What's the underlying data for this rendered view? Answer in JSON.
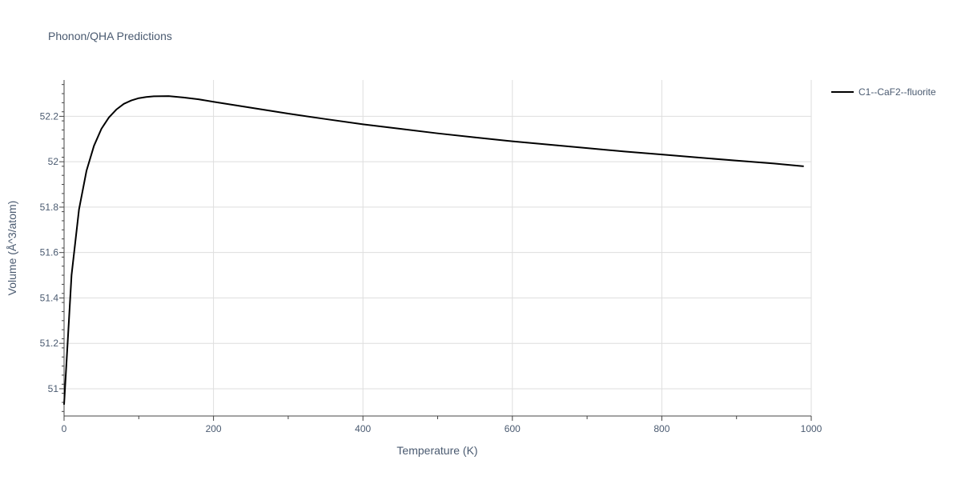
{
  "chart_data": {
    "type": "line",
    "title": "Phonon/QHA Predictions",
    "xlabel": "Temperature (K)",
    "ylabel": "Volume (Å^3/atom)",
    "xlim": [
      0,
      1000
    ],
    "ylim": [
      50.88,
      52.36
    ],
    "x_ticks": [
      0,
      200,
      400,
      600,
      800,
      1000
    ],
    "x_tick_labels": [
      "0",
      "200",
      "400",
      "600",
      "800",
      "1000"
    ],
    "y_ticks": [
      51.0,
      51.2,
      51.4,
      51.6,
      51.8,
      52.0,
      52.2
    ],
    "y_tick_labels": [
      "51",
      "51.2",
      "51.4",
      "51.6",
      "51.8",
      "52",
      "52.2"
    ],
    "grid": true,
    "legend_position": "top-right",
    "series": [
      {
        "name": "C1--CaF2--fluorite",
        "color": "#000000",
        "x": [
          0,
          10,
          20,
          30,
          40,
          50,
          60,
          70,
          80,
          90,
          100,
          110,
          120,
          140,
          160,
          180,
          200,
          250,
          300,
          350,
          400,
          450,
          500,
          550,
          600,
          650,
          700,
          750,
          800,
          850,
          900,
          950,
          990
        ],
        "y": [
          50.93,
          51.5,
          51.79,
          51.96,
          52.07,
          52.145,
          52.195,
          52.23,
          52.255,
          52.27,
          52.28,
          52.285,
          52.288,
          52.289,
          52.283,
          52.275,
          52.264,
          52.238,
          52.212,
          52.188,
          52.165,
          52.145,
          52.125,
          52.107,
          52.09,
          52.075,
          52.06,
          52.045,
          52.032,
          52.018,
          52.005,
          51.992,
          51.98
        ]
      }
    ]
  }
}
